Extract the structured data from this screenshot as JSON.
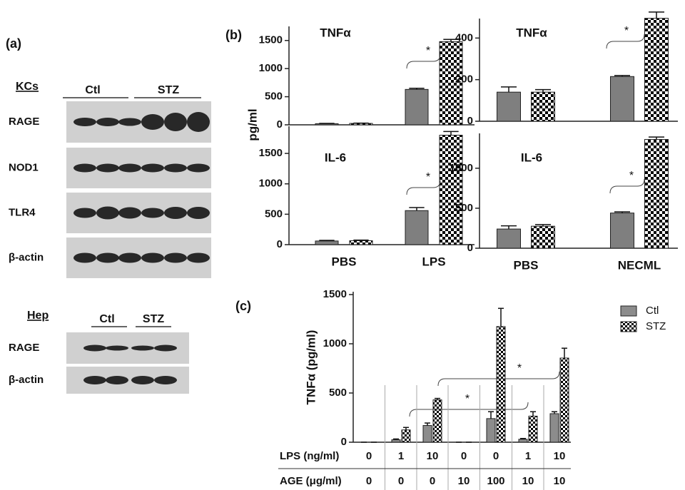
{
  "panels": {
    "a": "(a)",
    "b": "(b)",
    "c": "(c)"
  },
  "blots": {
    "kcs": {
      "title": "KCs",
      "groups": [
        "Ctl",
        "STZ"
      ],
      "rows": [
        "RAGE",
        "NOD1",
        "TLR4",
        "β-actin"
      ]
    },
    "hep": {
      "title": "Hep",
      "groups": [
        "Ctl",
        "STZ"
      ],
      "rows": [
        "RAGE",
        "β-actin"
      ]
    }
  },
  "chart_data": [
    {
      "type": "bar",
      "title": "TNFα",
      "ylabel": "pg/ml",
      "ylim": [
        0,
        1700
      ],
      "yticks": [
        0,
        500,
        1000,
        1500
      ],
      "series": [
        {
          "color": "#7f7f7f",
          "values": [
            20,
            630
          ],
          "errors": [
            5,
            20
          ]
        },
        {
          "color": "#000000",
          "values": [
            25,
            1480
          ],
          "errors": [
            5,
            40
          ]
        }
      ],
      "annotations": [
        "*"
      ]
    },
    {
      "type": "bar",
      "title": "TNFα",
      "ylim": [
        0,
        480
      ],
      "yticks": [
        0,
        200,
        400
      ],
      "series": [
        {
          "color": "#7f7f7f",
          "values": [
            140,
            215
          ],
          "errors": [
            25,
            5
          ]
        },
        {
          "color": "#000000",
          "values": [
            140,
            495
          ],
          "errors": [
            12,
            30
          ]
        }
      ],
      "annotations": [
        "*"
      ]
    },
    {
      "type": "bar",
      "title": "IL-6",
      "categories": [
        "PBS",
        "LPS"
      ],
      "ylim": [
        0,
        1900
      ],
      "yticks": [
        0,
        500,
        1000,
        1500
      ],
      "series": [
        {
          "color": "#7f7f7f",
          "values": [
            60,
            560
          ],
          "errors": [
            10,
            50
          ]
        },
        {
          "color": "#000000",
          "values": [
            65,
            1800
          ],
          "errors": [
            10,
            60
          ]
        }
      ],
      "annotations": [
        "*"
      ]
    },
    {
      "type": "bar",
      "title": "IL-6",
      "categories": [
        "PBS",
        "NECML"
      ],
      "ylim": [
        0,
        1400
      ],
      "yticks": [
        0,
        500,
        1000
      ],
      "series": [
        {
          "color": "#7f7f7f",
          "values": [
            240,
            440
          ],
          "errors": [
            40,
            15
          ]
        },
        {
          "color": "#000000",
          "values": [
            275,
            1360
          ],
          "errors": [
            20,
            30
          ]
        }
      ],
      "annotations": [
        "*"
      ]
    },
    {
      "type": "bar",
      "ylabel": "TNFα (pg/ml)",
      "ylim": [
        0,
        1500
      ],
      "yticks": [
        0,
        500,
        1000,
        1500
      ],
      "series": [
        {
          "name": "Ctl",
          "color": "#8c8c8c",
          "values": [
            0,
            25,
            170,
            0,
            240,
            30,
            290
          ],
          "errors": [
            0,
            8,
            25,
            0,
            70,
            8,
            20
          ]
        },
        {
          "name": "STZ",
          "color": "#000000",
          "values": [
            0,
            125,
            430,
            0,
            1175,
            265,
            855
          ],
          "errors": [
            0,
            25,
            15,
            0,
            185,
            45,
            100
          ]
        }
      ],
      "rows": [
        {
          "label": "LPS (ng/ml)",
          "values": [
            0,
            1,
            10,
            0,
            0,
            1,
            10
          ]
        },
        {
          "label": "AGE (μg/ml)",
          "values": [
            0,
            0,
            0,
            10,
            100,
            10,
            10
          ]
        }
      ],
      "annotations": [
        "*",
        "*"
      ]
    }
  ]
}
